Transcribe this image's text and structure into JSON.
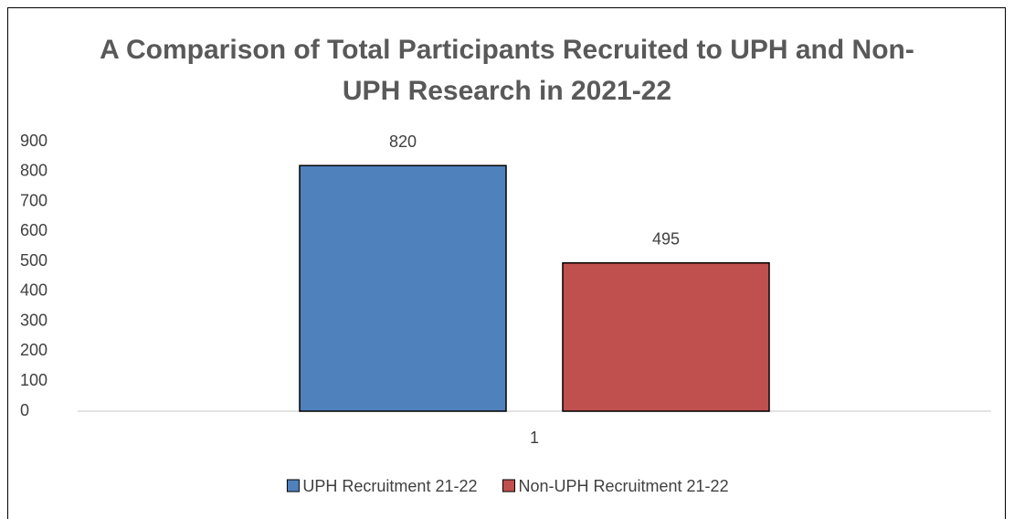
{
  "chart_data": {
    "type": "bar",
    "title": "A Comparison of Total Participants Recruited to UPH and Non-UPH Research in 2021-22",
    "categories": [
      "1"
    ],
    "series": [
      {
        "name": "UPH Recruitment 21-22",
        "color": "#4f81bd",
        "values": [
          820
        ]
      },
      {
        "name": "Non-UPH Recruitment 21-22",
        "color": "#c0504d",
        "values": [
          495
        ]
      }
    ],
    "ylim": [
      0,
      900
    ],
    "yticks": [
      0,
      100,
      200,
      300,
      400,
      500,
      600,
      700,
      800,
      900
    ],
    "grid": false,
    "legend": "bottom"
  }
}
